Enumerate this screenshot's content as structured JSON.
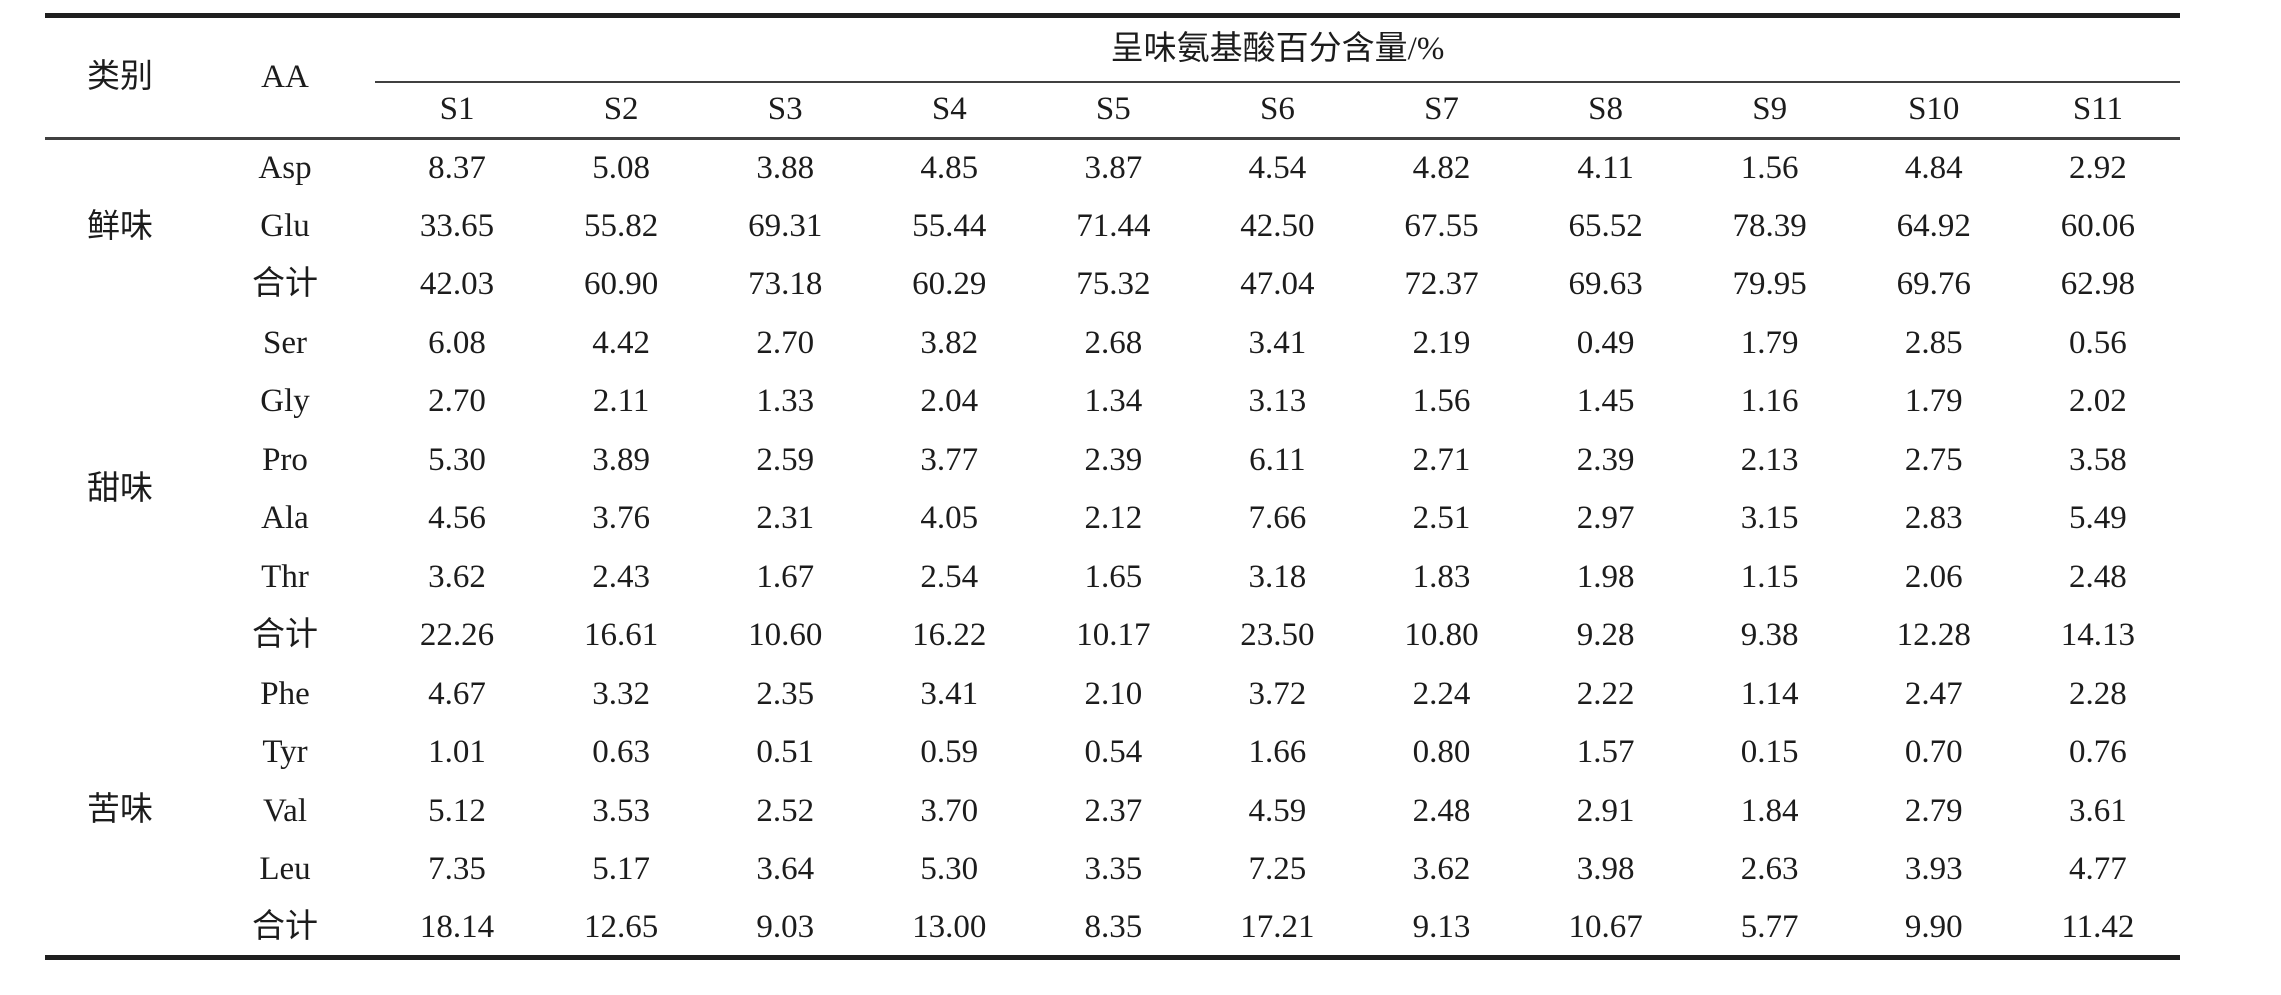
{
  "table": {
    "col_headers": {
      "category": "类别",
      "aa": "AA",
      "span_header": "呈味氨基酸百分含量/%",
      "samples": [
        "S1",
        "S2",
        "S3",
        "S4",
        "S5",
        "S6",
        "S7",
        "S8",
        "S9",
        "S10",
        "S11"
      ]
    },
    "groups": [
      {
        "category": "鲜味",
        "rows": [
          {
            "aa": "Asp",
            "values": [
              "8.37",
              "5.08",
              "3.88",
              "4.85",
              "3.87",
              "4.54",
              "4.82",
              "4.11",
              "1.56",
              "4.84",
              "2.92"
            ]
          },
          {
            "aa": "Glu",
            "values": [
              "33.65",
              "55.82",
              "69.31",
              "55.44",
              "71.44",
              "42.50",
              "67.55",
              "65.52",
              "78.39",
              "64.92",
              "60.06"
            ]
          },
          {
            "aa": "合计",
            "values": [
              "42.03",
              "60.90",
              "73.18",
              "60.29",
              "75.32",
              "47.04",
              "72.37",
              "69.63",
              "79.95",
              "69.76",
              "62.98"
            ]
          }
        ]
      },
      {
        "category": "甜味",
        "rows": [
          {
            "aa": "Ser",
            "values": [
              "6.08",
              "4.42",
              "2.70",
              "3.82",
              "2.68",
              "3.41",
              "2.19",
              "0.49",
              "1.79",
              "2.85",
              "0.56"
            ]
          },
          {
            "aa": "Gly",
            "values": [
              "2.70",
              "2.11",
              "1.33",
              "2.04",
              "1.34",
              "3.13",
              "1.56",
              "1.45",
              "1.16",
              "1.79",
              "2.02"
            ]
          },
          {
            "aa": "Pro",
            "values": [
              "5.30",
              "3.89",
              "2.59",
              "3.77",
              "2.39",
              "6.11",
              "2.71",
              "2.39",
              "2.13",
              "2.75",
              "3.58"
            ]
          },
          {
            "aa": "Ala",
            "values": [
              "4.56",
              "3.76",
              "2.31",
              "4.05",
              "2.12",
              "7.66",
              "2.51",
              "2.97",
              "3.15",
              "2.83",
              "5.49"
            ]
          },
          {
            "aa": "Thr",
            "values": [
              "3.62",
              "2.43",
              "1.67",
              "2.54",
              "1.65",
              "3.18",
              "1.83",
              "1.98",
              "1.15",
              "2.06",
              "2.48"
            ]
          },
          {
            "aa": "合计",
            "values": [
              "22.26",
              "16.61",
              "10.60",
              "16.22",
              "10.17",
              "23.50",
              "10.80",
              "9.28",
              "9.38",
              "12.28",
              "14.13"
            ]
          }
        ]
      },
      {
        "category": "苦味",
        "rows": [
          {
            "aa": "Phe",
            "values": [
              "4.67",
              "3.32",
              "2.35",
              "3.41",
              "2.10",
              "3.72",
              "2.24",
              "2.22",
              "1.14",
              "2.47",
              "2.28"
            ]
          },
          {
            "aa": "Tyr",
            "values": [
              "1.01",
              "0.63",
              "0.51",
              "0.59",
              "0.54",
              "1.66",
              "0.80",
              "1.57",
              "0.15",
              "0.70",
              "0.76"
            ]
          },
          {
            "aa": "Val",
            "values": [
              "5.12",
              "3.53",
              "2.52",
              "3.70",
              "2.37",
              "4.59",
              "2.48",
              "2.91",
              "1.84",
              "2.79",
              "3.61"
            ]
          },
          {
            "aa": "Leu",
            "values": [
              "7.35",
              "5.17",
              "3.64",
              "5.30",
              "3.35",
              "7.25",
              "3.62",
              "3.98",
              "2.63",
              "3.93",
              "4.77"
            ]
          },
          {
            "aa": "合计",
            "values": [
              "18.14",
              "12.65",
              "9.03",
              "13.00",
              "8.35",
              "17.21",
              "9.13",
              "10.67",
              "5.77",
              "9.90",
              "11.42"
            ]
          }
        ]
      }
    ]
  }
}
